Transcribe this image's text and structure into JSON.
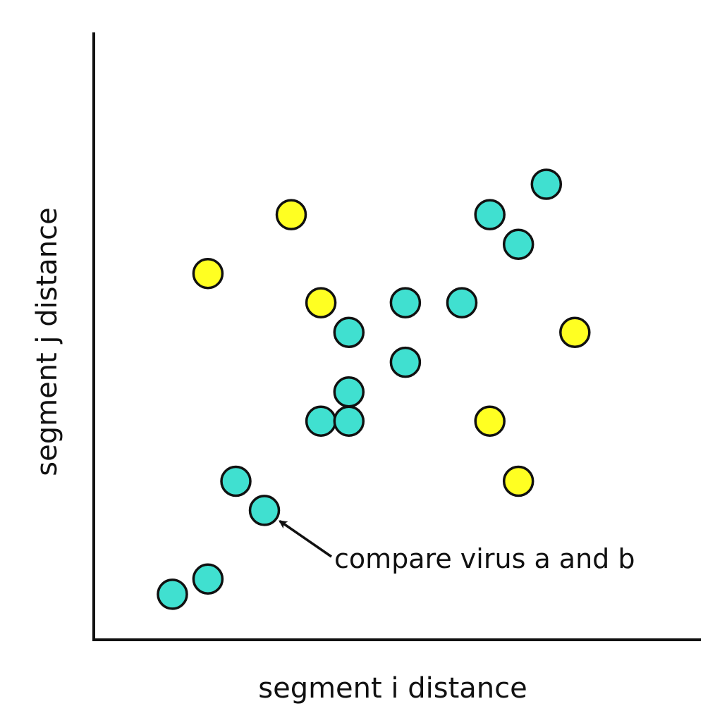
{
  "chart_data": {
    "type": "scatter",
    "title": "",
    "xlabel": "segment i distance",
    "ylabel": "segment j distance",
    "xlim": [
      0,
      100
    ],
    "ylim": [
      0,
      100
    ],
    "grid": false,
    "legend": "none",
    "series": [
      {
        "color": "#40e0d0",
        "points": [
          {
            "x": 13.5,
            "y": 7.5
          },
          {
            "x": 19.6,
            "y": 10.0
          },
          {
            "x": 24.4,
            "y": 26.1
          },
          {
            "x": 29.3,
            "y": 21.3
          },
          {
            "x": 39.0,
            "y": 36.0
          },
          {
            "x": 43.8,
            "y": 36.0
          },
          {
            "x": 43.8,
            "y": 40.8
          },
          {
            "x": 43.8,
            "y": 50.6
          },
          {
            "x": 53.5,
            "y": 45.7
          },
          {
            "x": 53.5,
            "y": 55.5
          },
          {
            "x": 63.2,
            "y": 55.5
          },
          {
            "x": 68.0,
            "y": 70.0
          },
          {
            "x": 72.9,
            "y": 65.1
          },
          {
            "x": 77.7,
            "y": 75.0
          }
        ]
      },
      {
        "color": "#ffff22",
        "points": [
          {
            "x": 19.6,
            "y": 60.3
          },
          {
            "x": 33.9,
            "y": 70.0
          },
          {
            "x": 39.0,
            "y": 55.5
          },
          {
            "x": 68.0,
            "y": 36.0
          },
          {
            "x": 72.9,
            "y": 26.1
          },
          {
            "x": 82.6,
            "y": 50.6
          }
        ]
      }
    ],
    "annotations": [
      {
        "text": "compare virus a and b",
        "target": {
          "x": 29.3,
          "y": 21.3
        }
      }
    ]
  }
}
